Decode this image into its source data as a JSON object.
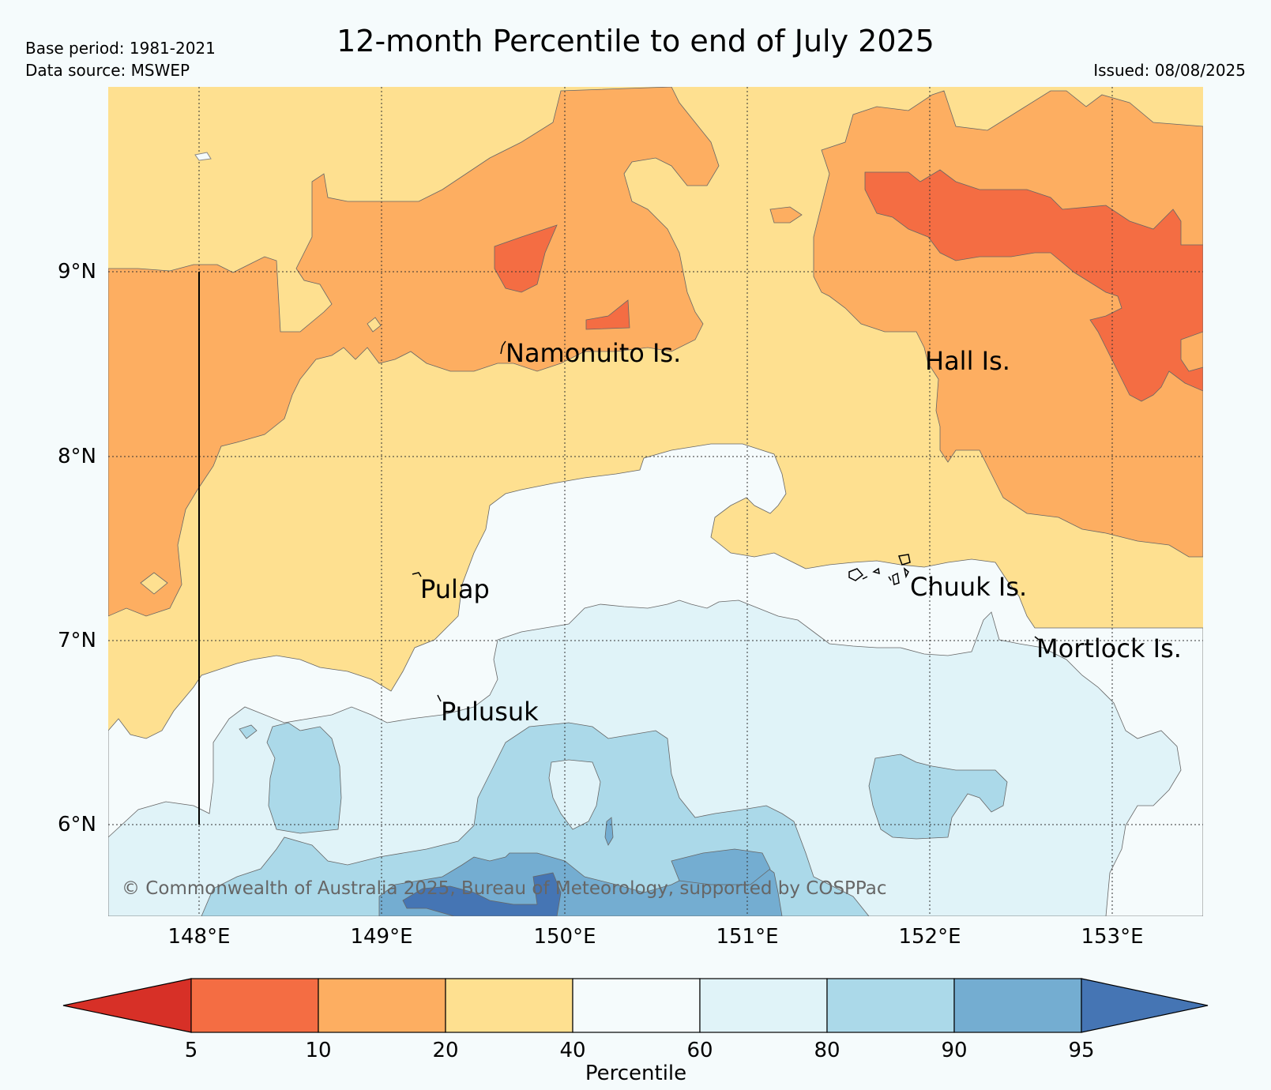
{
  "header": {
    "base_period": "Base period: 1981-2021",
    "data_source": "Data source: MSWEP",
    "title": "12-month Percentile to end of July 2025",
    "issued": "Issued: 08/08/2025"
  },
  "map": {
    "lat_labels": [
      "9°N",
      "8°N",
      "7°N",
      "6°N"
    ],
    "lon_labels": [
      "148°E",
      "149°E",
      "150°E",
      "151°E",
      "152°E",
      "153°E"
    ],
    "places": {
      "namonuito": "Namonuito Is.",
      "hall": "Hall Is.",
      "pulap": "Pulap",
      "chuuk": "Chuuk Is.",
      "mortlock": "Mortlock Is.",
      "pulusuk": "Pulusuk"
    },
    "copyright": "© Commonwealth of Australia 2025, Bureau of Meteorology, supported by COSPPac"
  },
  "colorbar": {
    "title": "Percentile",
    "ticks": [
      "5",
      "10",
      "20",
      "40",
      "60",
      "80",
      "90",
      "95"
    ],
    "colors": {
      "lt5": "#d73027",
      "5to10": "#f46d43",
      "10to20": "#fdae61",
      "20to40": "#fee090",
      "40to60": "#f5fbfc",
      "60to80": "#e0f3f8",
      "80to90": "#abd9e9",
      "90to95": "#74add1",
      "gt95": "#4575b4"
    }
  }
}
